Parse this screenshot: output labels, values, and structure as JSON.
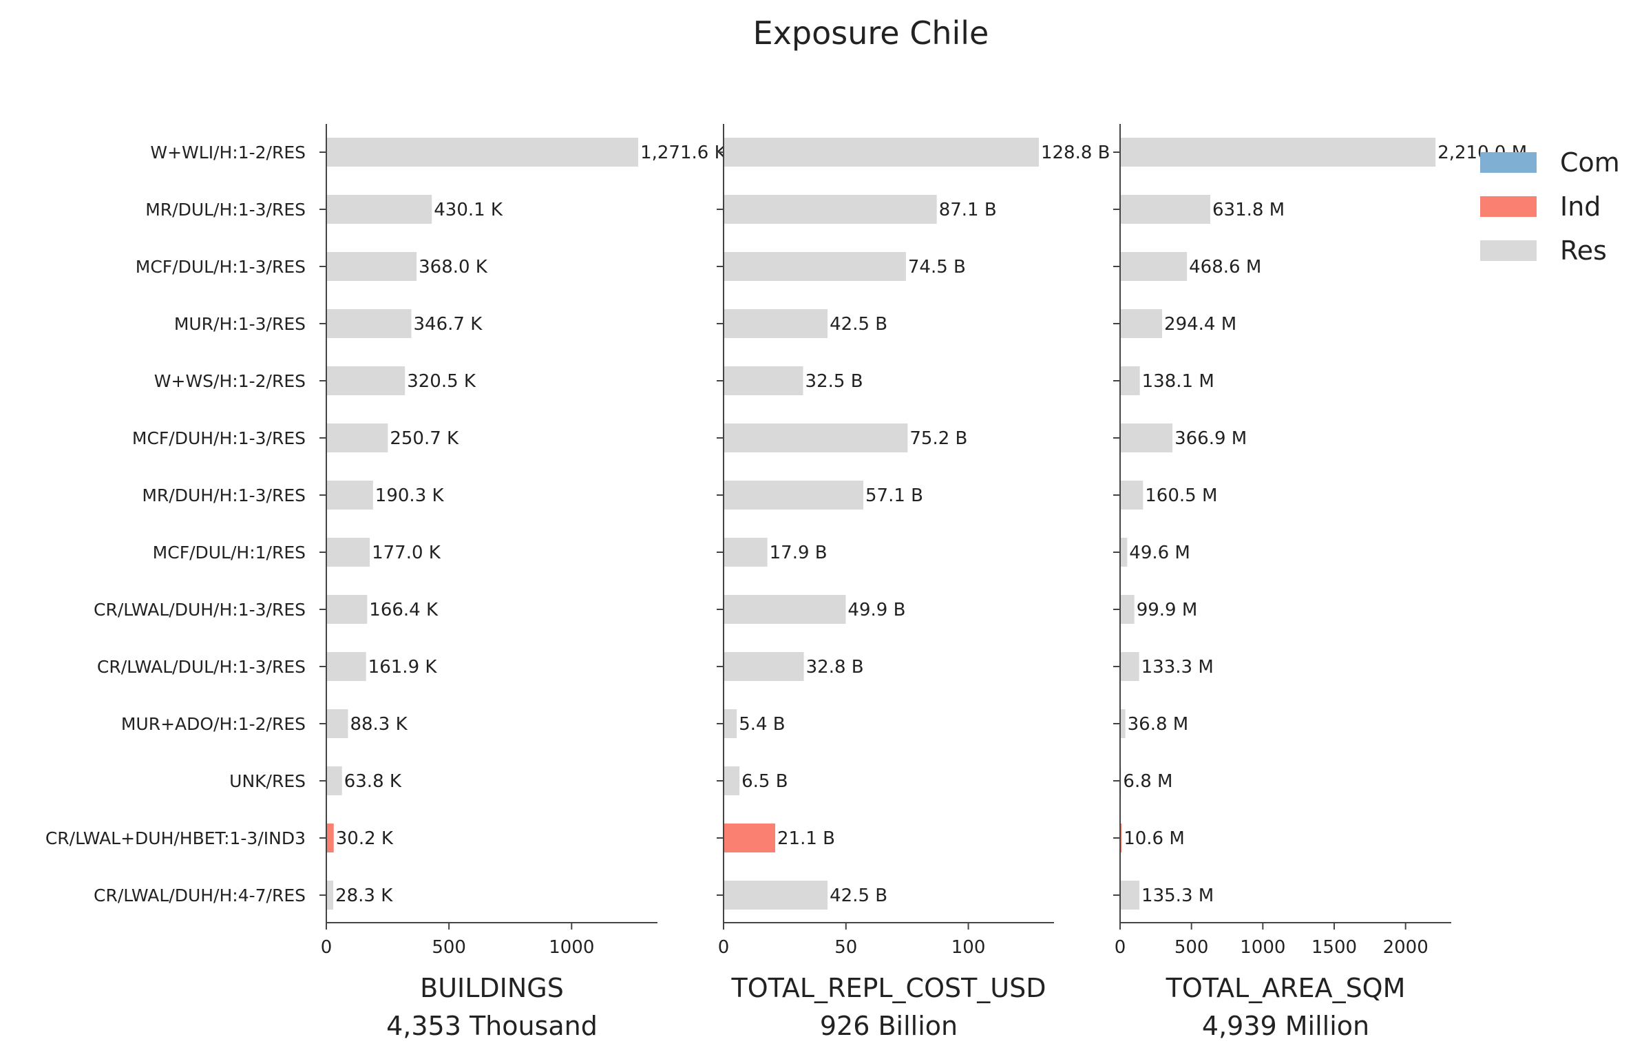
{
  "figure": {
    "title": "Exposure Chile"
  },
  "chart_data": {
    "type": "bar",
    "orientation": "horizontal",
    "title": "Exposure Chile",
    "categories": [
      "W+WLI/H:1-2/RES",
      "MR/DUL/H:1-3/RES",
      "MCF/DUL/H:1-3/RES",
      "MUR/H:1-3/RES",
      "W+WS/H:1-2/RES",
      "MCF/DUH/H:1-3/RES",
      "MR/DUH/H:1-3/RES",
      "MCF/DUL/H:1/RES",
      "CR/LWAL/DUH/H:1-3/RES",
      "CR/LWAL/DUL/H:1-3/RES",
      "MUR+ADO/H:1-2/RES",
      "UNK/RES",
      "CR/LWAL+DUH/HBET:1-3/IND3",
      "CR/LWAL/DUH/H:4-7/RES"
    ],
    "occupancy": [
      "Res",
      "Res",
      "Res",
      "Res",
      "Res",
      "Res",
      "Res",
      "Res",
      "Res",
      "Res",
      "Res",
      "Res",
      "Ind",
      "Res"
    ],
    "legend": {
      "placement": "top-right",
      "entries": [
        {
          "name": "Com",
          "color": "#7fafd2"
        },
        {
          "name": "Ind",
          "color": "#fa8072"
        },
        {
          "name": "Res",
          "color": "#d9d9d9"
        }
      ]
    },
    "grid": false,
    "panels": [
      {
        "xlabel": "BUILDINGS",
        "total": "4,353 Thousand",
        "xlim": [
          0,
          1350
        ],
        "xticks": [
          0,
          500,
          1000
        ],
        "xtick_labels": [
          "0",
          "500",
          "1000"
        ],
        "values": [
          1271.6,
          430.1,
          368.0,
          346.7,
          320.5,
          250.7,
          190.3,
          177.0,
          166.4,
          161.9,
          88.3,
          63.8,
          30.2,
          28.3
        ],
        "value_labels": [
          "1,271.6 K",
          "430.1 K",
          "368.0 K",
          "346.7 K",
          "320.5 K",
          "250.7 K",
          "190.3 K",
          "177.0 K",
          "166.4 K",
          "161.9 K",
          "88.3 K",
          "63.8 K",
          "30.2 K",
          "28.3 K"
        ]
      },
      {
        "xlabel": "TOTAL_REPL_COST_USD",
        "total": "926 Billion",
        "xlim": [
          0,
          135
        ],
        "xticks": [
          0,
          50,
          100
        ],
        "xtick_labels": [
          "0",
          "50",
          "100"
        ],
        "values": [
          128.8,
          87.1,
          74.5,
          42.5,
          32.5,
          75.2,
          57.1,
          17.9,
          49.9,
          32.8,
          5.4,
          6.5,
          21.1,
          42.5
        ],
        "value_labels": [
          "128.8 B",
          "87.1 B",
          "74.5 B",
          "42.5 B",
          "32.5 B",
          "75.2 B",
          "57.1 B",
          "17.9 B",
          "49.9 B",
          "32.8 B",
          "5.4 B",
          "6.5 B",
          "21.1 B",
          "42.5 B"
        ]
      },
      {
        "xlabel": "TOTAL_AREA_SQM",
        "total": "4,939 Million",
        "xlim": [
          0,
          2320
        ],
        "xticks": [
          0,
          500,
          1000,
          1500,
          2000
        ],
        "xtick_labels": [
          "0",
          "500",
          "1000",
          "1500",
          "2000"
        ],
        "values": [
          2210.0,
          631.8,
          468.6,
          294.4,
          138.1,
          366.9,
          160.5,
          49.6,
          99.9,
          133.3,
          36.8,
          6.8,
          10.6,
          135.3
        ],
        "value_labels": [
          "2,210.0 M",
          "631.8 M",
          "468.6 M",
          "294.4 M",
          "138.1 M",
          "366.9 M",
          "160.5 M",
          "49.6 M",
          "99.9 M",
          "133.3 M",
          "36.8 M",
          "6.8 M",
          "10.6 M",
          "135.3 M"
        ]
      }
    ]
  }
}
